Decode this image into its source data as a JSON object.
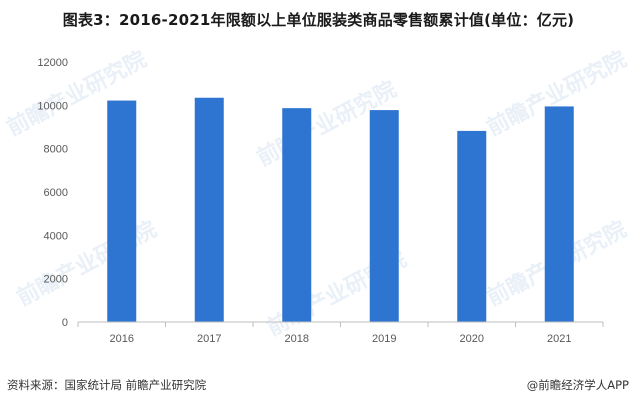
{
  "header": {
    "title": "图表3：2016-2021年限额以上单位服装类商品零售额累计值(单位：亿元)"
  },
  "footer": {
    "source": "资料来源：国家统计局 前瞻产业研究院",
    "brand": "@前瞻经济学人APP"
  },
  "watermark": {
    "text": "前瞻产业研究院"
  },
  "colors": {
    "bar": "#2E75D2",
    "axis": "#bfbfbf",
    "tick_text": "#595959"
  },
  "chart_data": {
    "type": "bar",
    "title": "图表3：2016-2021年限额以上单位服装类商品零售额累计值(单位：亿元)",
    "categories": [
      "2016",
      "2017",
      "2018",
      "2019",
      "2020",
      "2021"
    ],
    "values": [
      10220,
      10350,
      9870,
      9780,
      8820,
      9950
    ],
    "xlabel": "",
    "ylabel": "",
    "ylim": [
      0,
      12000
    ],
    "yticks": [
      0,
      2000,
      4000,
      6000,
      8000,
      10000,
      12000
    ],
    "grid": false,
    "legend": "none"
  }
}
